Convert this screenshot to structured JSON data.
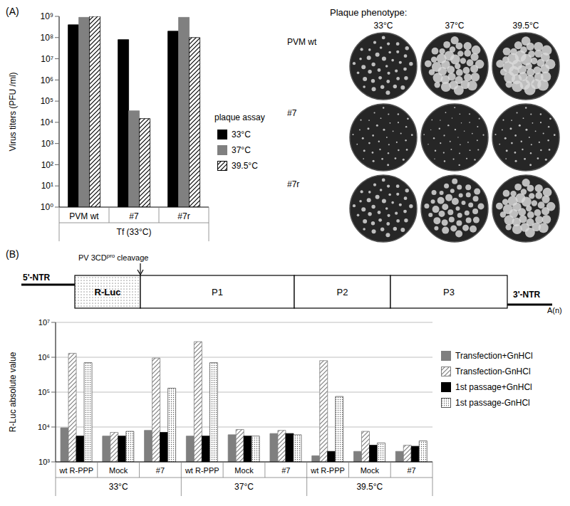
{
  "chart_data": [
    {
      "type": "bar",
      "title": "(A)",
      "y_label": "Virus titers (PFU /ml)",
      "group_label": "Tf (33°C)",
      "legend_title": "plaque assay",
      "categories": [
        "PVM wt",
        "#7",
        "#7r"
      ],
      "series": [
        {
          "name": "33°C",
          "color": "#000000",
          "values": [
            400000000,
            80000000,
            200000000
          ]
        },
        {
          "name": "37°C",
          "color": "#808080",
          "values": [
            900000000,
            35000,
            900000000
          ]
        },
        {
          "name": "39.5°C",
          "color": "#000000",
          "values": [
            1000000000,
            15000,
            100000000
          ]
        }
      ],
      "ylim": [
        1,
        1000000000
      ],
      "yticks": [
        {
          "value": 1,
          "label": "10⁰"
        },
        {
          "value": 10,
          "label": "10¹"
        },
        {
          "value": 100,
          "label": "10²"
        },
        {
          "value": 1000,
          "label": "10³"
        },
        {
          "value": 10000,
          "label": "10⁴"
        },
        {
          "value": 100000,
          "label": "10⁵"
        },
        {
          "value": 1000000,
          "label": "10⁶"
        },
        {
          "value": 10000000,
          "label": "10⁷"
        },
        {
          "value": 100000000,
          "label": "10⁸"
        },
        {
          "value": 1000000000,
          "label": "10⁹"
        }
      ],
      "log": "y",
      "grid": false,
      "legend": "right"
    },
    {
      "type": "bar",
      "title": "(B)",
      "y_label": "R-Luc absolute value",
      "categories": [
        "wt R-PPP",
        "Mock",
        "#7",
        "wt R-PPP",
        "Mock",
        "#7",
        "wt R-PPP",
        "Mock",
        "#7"
      ],
      "groups": [
        "33°C",
        "37°C",
        "39.5°C"
      ],
      "series": [
        {
          "name": "Transfection+GnHCl",
          "color": "#7f7f7f",
          "values": [
            9500,
            5500,
            8000,
            5500,
            6000,
            6500,
            1500,
            2000,
            2000
          ]
        },
        {
          "name": "Transfection-GnHCl",
          "color": "#7f7f7f",
          "values": [
            1300000,
            7000,
            950000,
            2800000,
            8500,
            8000,
            800000,
            7500,
            3000
          ]
        },
        {
          "name": "1st passage+GnHCl",
          "color": "#000000",
          "values": [
            5500,
            5500,
            7000,
            5500,
            5500,
            6500,
            2000,
            3000,
            2800
          ]
        },
        {
          "name": "1st passage-GnHCl",
          "color": "#595959",
          "values": [
            700000,
            7500,
            130000,
            700000,
            5500,
            6000,
            75000,
            3500,
            4000
          ]
        }
      ],
      "ylim": [
        1000,
        10000000
      ],
      "yticks": [
        {
          "value": 1000,
          "label": "10³"
        },
        {
          "value": 10000,
          "label": "10⁴"
        },
        {
          "value": 100000,
          "label": "10⁵"
        },
        {
          "value": 1000000,
          "label": "10⁶"
        },
        {
          "value": 10000000,
          "label": "10⁷"
        }
      ],
      "log": "y",
      "grid": true,
      "legend": "right"
    }
  ],
  "plaque_phenotype": {
    "title": "Plaque phenotype:",
    "columns": [
      "33°C",
      "37°C",
      "39.5°C"
    ],
    "rows": [
      "PVM wt",
      "#7",
      "#7r"
    ]
  },
  "genome_diagram": {
    "left_label": "5'-NTR",
    "right_label": "3'-NTR",
    "tail": "A(n)",
    "cleavage": [
      "PV 3CD",
      "pro",
      " cleavage"
    ],
    "segments": [
      "R-Luc",
      "P1",
      "P2",
      "P3"
    ]
  }
}
